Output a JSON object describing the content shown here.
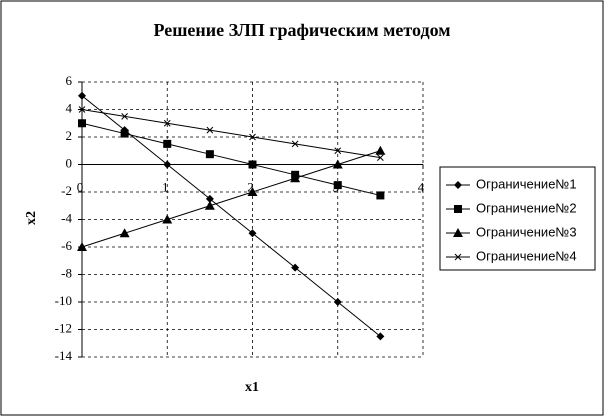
{
  "chart_data": {
    "type": "line",
    "title": "Решение ЗЛП графическим методом",
    "x_label": "x1",
    "y_label": "x2",
    "x": [
      0,
      0.5,
      1,
      1.5,
      2,
      2.5,
      3,
      3.5
    ],
    "series": [
      {
        "name": "Ограничение№1",
        "color": "#000000",
        "marker": "diamond",
        "values": [
          5,
          2.5,
          0,
          -2.5,
          -5,
          -7.5,
          -10,
          -12.5
        ]
      },
      {
        "name": "Ограничение№2",
        "color": "#000000",
        "marker": "square",
        "values": [
          3,
          2.25,
          1.5,
          0.75,
          0,
          -0.75,
          -1.5,
          -2.25
        ]
      },
      {
        "name": "Ограничение№3",
        "color": "#000000",
        "marker": "triangle",
        "values": [
          -6,
          -5,
          -4,
          -3,
          -2,
          -1,
          0,
          1
        ]
      },
      {
        "name": "Ограничение№4",
        "color": "#000000",
        "marker": "cross",
        "values": [
          4,
          3.5,
          3,
          2.5,
          2,
          1.5,
          1,
          0.5
        ]
      }
    ],
    "xlim": [
      0,
      4
    ],
    "xticks": [
      0,
      1,
      2,
      3,
      4
    ],
    "ylim": [
      -14,
      6
    ],
    "yticks": [
      -14,
      -12,
      -10,
      -8,
      -6,
      -4,
      -2,
      0,
      2,
      4,
      6
    ],
    "grid": true,
    "legend": "right"
  }
}
